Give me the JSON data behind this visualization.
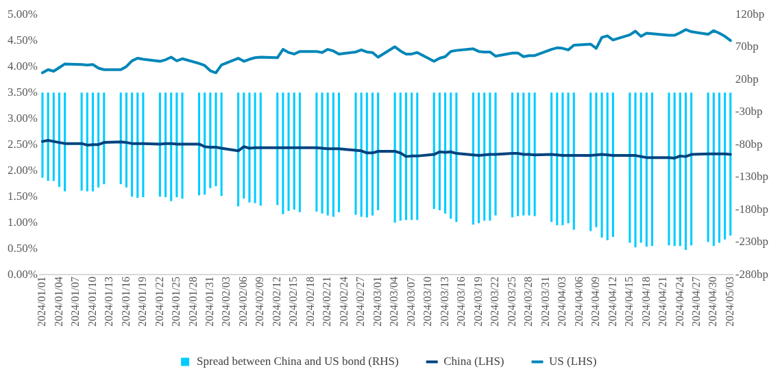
{
  "chart_data": {
    "type": "bar",
    "categories": [
      "2024/01/01",
      null,
      null,
      "2024/01/04",
      null,
      null,
      "2024/01/07",
      null,
      null,
      "2024/01/10",
      null,
      null,
      "2024/01/13",
      null,
      null,
      "2024/01/16",
      null,
      null,
      "2024/01/19",
      null,
      null,
      "2024/01/22",
      null,
      null,
      "2024/01/25",
      null,
      null,
      "2024/01/28",
      null,
      null,
      "2024/01/31",
      null,
      null,
      "2024/02/03",
      null,
      null,
      "2024/02/06",
      null,
      null,
      "2024/02/09",
      null,
      null,
      "2024/02/12",
      null,
      null,
      "2024/02/15",
      null,
      null,
      "2024/02/18",
      null,
      null,
      "2024/02/21",
      null,
      null,
      "2024/02/24",
      null,
      null,
      "2024/02/27",
      null,
      null,
      "2024/03/01",
      null,
      null,
      "2024/03/04",
      null,
      null,
      "2024/03/07",
      null,
      null,
      "2024/03/10",
      null,
      null,
      "2024/03/13",
      null,
      null,
      "2024/03/16",
      null,
      null,
      "2024/03/19",
      null,
      null,
      "2024/03/22",
      null,
      null,
      "2024/03/25",
      null,
      null,
      "2024/03/28",
      null,
      null,
      "2024/03/31",
      null,
      null,
      "2024/04/03",
      null,
      null,
      "2024/04/06",
      null,
      null,
      "2024/04/09",
      null,
      null,
      "2024/04/12",
      null,
      null,
      "2024/04/15",
      null,
      null,
      "2024/04/18",
      null,
      null,
      "2024/04/21",
      null,
      null,
      "2024/04/24",
      null,
      null,
      "2024/04/27",
      null,
      null,
      "2024/04/30",
      null,
      null,
      "2024/05/03"
    ],
    "series": [
      {
        "name": "Spread between China and US bond (RHS)",
        "axis": "y2",
        "color": "#00ccff",
        "values": [
          -131,
          -136,
          -136,
          -145,
          -152,
          null,
          null,
          -151,
          -152,
          -152,
          -146,
          -141,
          null,
          null,
          -141,
          -146,
          -160,
          -162,
          -161,
          null,
          null,
          -160,
          -161,
          -167,
          -161,
          -163,
          null,
          null,
          -158,
          -157,
          -147,
          -144,
          -159,
          null,
          null,
          -175,
          -163,
          -169,
          -170,
          -174,
          null,
          null,
          -173,
          -187,
          -182,
          -180,
          -184,
          null,
          null,
          -183,
          -186,
          -189,
          -191,
          -184,
          null,
          null,
          -188,
          -191,
          -192,
          -189,
          -181,
          null,
          null,
          -200,
          -197,
          -196,
          -196,
          -196,
          null,
          null,
          -179,
          -181,
          -186,
          -194,
          -199,
          null,
          null,
          -203,
          -201,
          -197,
          -197,
          -189,
          null,
          null,
          -192,
          -190,
          -189,
          -189,
          -190,
          null,
          null,
          -199,
          -204,
          -204,
          -201,
          -211,
          null,
          null,
          -213,
          -207,
          -223,
          -227,
          -222,
          null,
          null,
          -231,
          -238,
          -231,
          -237,
          -236,
          null,
          null,
          -235,
          -236,
          -236,
          -242,
          -235,
          null,
          null,
          -230,
          -236,
          -231,
          -226,
          -220
        ]
      },
      {
        "name": "China (LHS)",
        "type": "line",
        "color": "#00437f",
        "values": [
          2.56,
          2.58,
          2.56,
          2.54,
          2.52,
          null,
          null,
          2.52,
          2.49,
          2.5,
          2.5,
          2.54,
          null,
          null,
          2.55,
          2.54,
          2.52,
          2.52,
          2.52,
          null,
          null,
          2.51,
          2.52,
          2.52,
          2.51,
          2.51,
          null,
          null,
          2.51,
          2.46,
          2.45,
          2.45,
          2.43,
          null,
          null,
          2.38,
          2.46,
          2.43,
          2.44,
          2.44,
          null,
          null,
          2.44,
          2.44,
          2.44,
          2.44,
          2.44,
          null,
          null,
          2.44,
          2.43,
          2.42,
          2.42,
          2.42,
          null,
          null,
          2.39,
          2.38,
          2.34,
          2.34,
          2.37,
          null,
          null,
          2.37,
          2.34,
          2.27,
          2.28,
          2.28,
          null,
          null,
          2.31,
          2.36,
          2.35,
          2.36,
          2.33,
          null,
          null,
          2.3,
          2.29,
          2.3,
          2.31,
          2.31,
          null,
          null,
          2.33,
          2.33,
          2.31,
          2.31,
          2.3,
          null,
          null,
          2.31,
          2.3,
          2.29,
          2.29,
          2.29,
          null,
          null,
          2.29,
          2.3,
          2.31,
          2.3,
          2.29,
          null,
          null,
          2.29,
          2.29,
          2.27,
          2.25,
          2.25,
          null,
          null,
          2.25,
          2.24,
          2.28,
          2.27,
          2.31,
          null,
          null,
          2.32,
          2.32,
          2.32,
          2.32,
          2.31
        ]
      },
      {
        "name": "US (LHS)",
        "type": "line",
        "color": "#0086b8",
        "values": [
          3.88,
          3.94,
          3.91,
          3.98,
          4.05,
          null,
          null,
          4.04,
          4.03,
          4.04,
          3.97,
          3.94,
          null,
          null,
          3.94,
          4.0,
          4.11,
          4.16,
          4.14,
          null,
          null,
          4.1,
          4.13,
          4.18,
          4.11,
          4.15,
          null,
          null,
          4.06,
          4.02,
          3.92,
          3.88,
          4.03,
          null,
          null,
          4.16,
          4.1,
          4.14,
          4.17,
          4.18,
          null,
          null,
          4.17,
          4.33,
          4.27,
          4.24,
          4.29,
          null,
          null,
          4.29,
          4.27,
          4.33,
          4.3,
          4.24,
          null,
          null,
          4.28,
          4.32,
          4.28,
          4.27,
          4.18,
          null,
          null,
          4.38,
          4.3,
          4.24,
          4.24,
          4.27,
          null,
          null,
          4.1,
          4.16,
          4.19,
          4.29,
          4.31,
          null,
          null,
          4.34,
          4.29,
          4.28,
          4.28,
          4.2,
          null,
          null,
          4.26,
          4.26,
          4.19,
          4.21,
          4.21,
          null,
          null,
          4.33,
          4.36,
          4.35,
          4.32,
          4.41,
          null,
          null,
          4.43,
          4.35,
          4.56,
          4.59,
          4.51,
          null,
          null,
          4.61,
          4.68,
          4.58,
          4.64,
          4.63,
          null,
          null,
          4.6,
          4.6,
          4.65,
          4.71,
          4.67,
          null,
          null,
          4.62,
          4.69,
          4.64,
          4.58,
          4.5
        ]
      }
    ],
    "ylim": [
      0,
      5
    ],
    "yticks": [
      {
        "value": 0,
        "label": "0.00%"
      },
      {
        "value": 0.5,
        "label": "0.50%"
      },
      {
        "value": 1,
        "label": "1.00%"
      },
      {
        "value": 1.5,
        "label": "1.50%"
      },
      {
        "value": 2,
        "label": "2.00%"
      },
      {
        "value": 2.5,
        "label": "2.50%"
      },
      {
        "value": 3,
        "label": "3.00%"
      },
      {
        "value": 3.5,
        "label": "3.50%"
      },
      {
        "value": 4,
        "label": "4.00%"
      },
      {
        "value": 4.5,
        "label": "4.50%"
      },
      {
        "value": 5,
        "label": "5.00%"
      }
    ],
    "y2lim": [
      -280,
      120
    ],
    "y2ticks": [
      {
        "value": -280,
        "label": "-280bp"
      },
      {
        "value": -230,
        "label": "-230bp"
      },
      {
        "value": -180,
        "label": "-180bp"
      },
      {
        "value": -130,
        "label": "-130bp"
      },
      {
        "value": -80,
        "label": "-80bp"
      },
      {
        "value": -30,
        "label": "-30bp"
      },
      {
        "value": 20,
        "label": "20bp"
      },
      {
        "value": 70,
        "label": "70bp"
      },
      {
        "value": 120,
        "label": "120bp"
      }
    ],
    "grid": false,
    "legend": "bottom",
    "marker": "none",
    "line_style": "solid"
  }
}
